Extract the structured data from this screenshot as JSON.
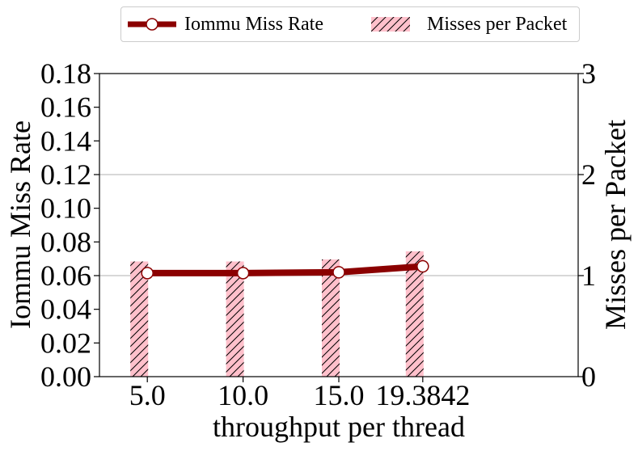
{
  "chart_data": {
    "type": "bar+line",
    "title": "",
    "xlabel": "throughput per thread",
    "categories": [
      "5.0",
      "10.0",
      "15.0",
      "19.3842"
    ],
    "x": [
      5.0,
      10.0,
      15.0,
      19.3842
    ],
    "xlim": [
      2.5,
      27.5
    ],
    "ylabel_left": "Iommu Miss Rate",
    "ylim_left": [
      0.0,
      0.18
    ],
    "yticks_left": [
      "0.00",
      "0.02",
      "0.04",
      "0.06",
      "0.08",
      "0.10",
      "0.12",
      "0.14",
      "0.16",
      "0.18"
    ],
    "ylabel_right": "Misses per Packet",
    "ylim_right": [
      0,
      3
    ],
    "yticks_right": [
      "0",
      "1",
      "2",
      "3"
    ],
    "grid": "horizontal (right axis)",
    "legend_position": "top-center",
    "series": [
      {
        "name": "Iommu Miss Rate",
        "kind": "line",
        "axis": "left",
        "color": "#8b0000",
        "marker": "circle-white",
        "values": [
          0.0615,
          0.0615,
          0.062,
          0.0655
        ]
      },
      {
        "name": "Misses per Packet",
        "kind": "bar",
        "axis": "right",
        "color": "#ffc0cb",
        "hatch": "diagonal",
        "values": [
          1.14,
          1.14,
          1.16,
          1.24
        ]
      }
    ]
  }
}
